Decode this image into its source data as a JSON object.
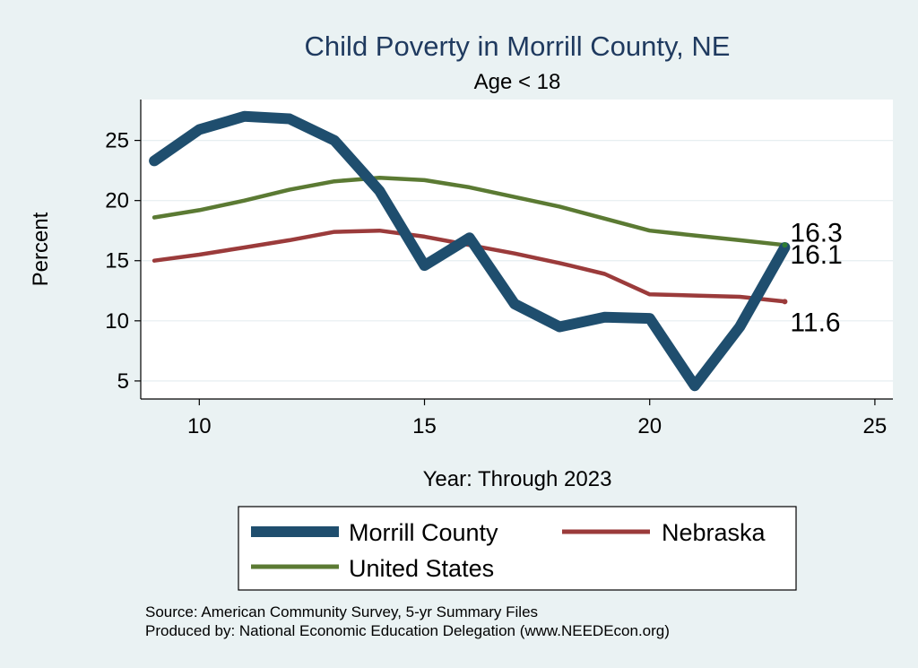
{
  "chart_data": {
    "type": "line",
    "title": "Child Poverty in Morrill County, NE",
    "subtitle": "Age < 18",
    "xlabel": "Year: Through 2023",
    "ylabel": "Percent",
    "xlim": [
      8.7,
      25.4
    ],
    "ylim": [
      3.5,
      28.4
    ],
    "xticks": [
      10,
      15,
      20,
      25
    ],
    "yticks": [
      5,
      10,
      15,
      20,
      25
    ],
    "grid": true,
    "legend_position": "bottom",
    "series": [
      {
        "name": "Morrill County",
        "color": "#1f4e6e",
        "x": [
          9,
          10,
          11,
          12,
          13,
          14,
          15,
          16,
          17,
          18,
          19,
          20,
          21,
          22,
          23
        ],
        "values": [
          23.3,
          25.9,
          27.0,
          26.8,
          25.0,
          20.8,
          14.6,
          16.9,
          11.4,
          9.5,
          10.3,
          10.2,
          4.6,
          9.5,
          16.1
        ],
        "end_label": "16.1"
      },
      {
        "name": "Nebraska",
        "color": "#9b3b3b",
        "x": [
          9,
          10,
          11,
          12,
          13,
          14,
          15,
          16,
          17,
          18,
          19,
          20,
          21,
          22,
          23
        ],
        "values": [
          15.0,
          15.5,
          16.1,
          16.7,
          17.4,
          17.5,
          17.0,
          16.3,
          15.6,
          14.8,
          13.9,
          12.2,
          12.1,
          12.0,
          11.6
        ],
        "end_label": "11.6"
      },
      {
        "name": "United States",
        "color": "#5b7a33",
        "x": [
          9,
          10,
          11,
          12,
          13,
          14,
          15,
          16,
          17,
          18,
          19,
          20,
          21,
          22,
          23
        ],
        "values": [
          18.6,
          19.2,
          20.0,
          20.9,
          21.6,
          21.9,
          21.7,
          21.1,
          20.3,
          19.5,
          18.5,
          17.5,
          17.1,
          16.7,
          16.3
        ],
        "end_label": "16.3"
      }
    ],
    "sources": [
      "Source: American Community Survey, 5-yr Summary Files",
      "Produced by: National Economic Education Delegation (www.NEEDEcon.org)"
    ]
  }
}
